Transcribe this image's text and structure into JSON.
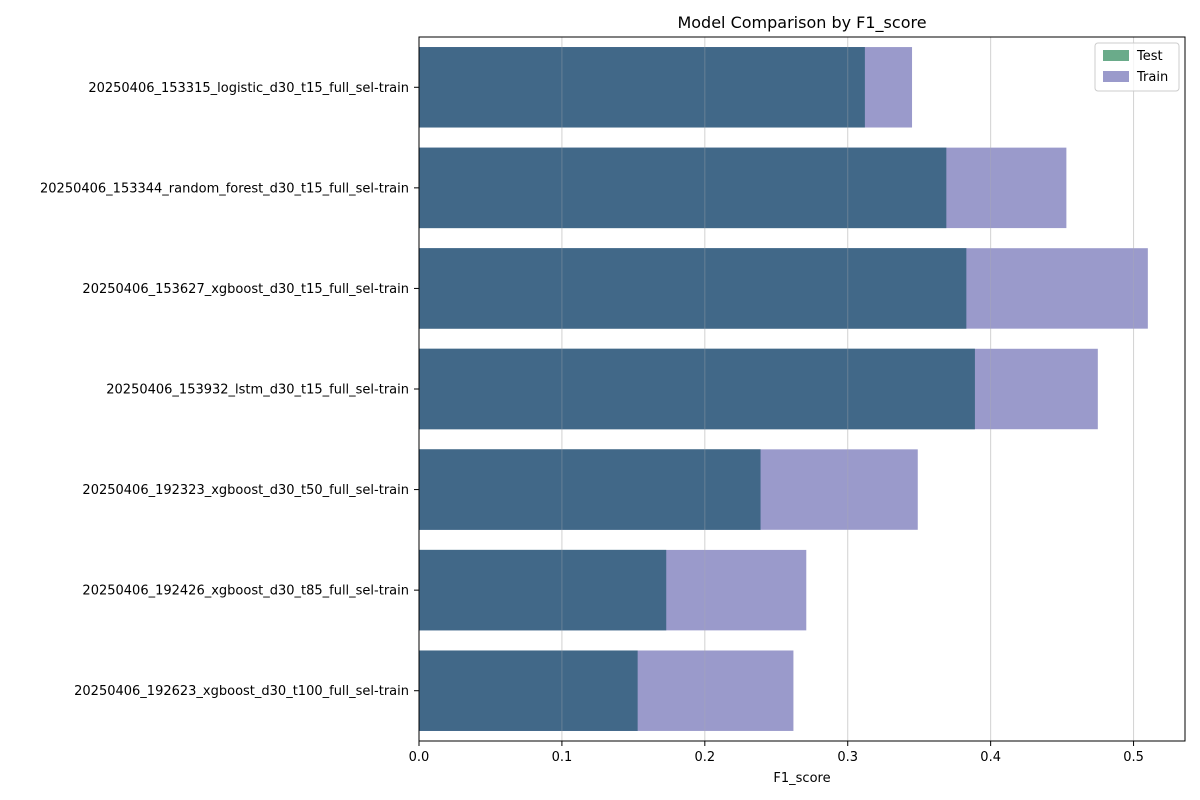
{
  "chart_data": {
    "type": "bar",
    "orientation": "horizontal",
    "title": "Model Comparison by F1_score",
    "xlabel": "F1_score",
    "ylabel": "",
    "xlim": [
      0,
      0.536
    ],
    "x_ticks": [
      0.0,
      0.1,
      0.2,
      0.3,
      0.4,
      0.5
    ],
    "x_tick_labels": [
      "0.0",
      "0.1",
      "0.2",
      "0.3",
      "0.4",
      "0.5"
    ],
    "grid": "vertical",
    "legend_position": "top-right",
    "categories": [
      "20250406_153315_logistic_d30_t15_full_sel-train",
      "20250406_153344_random_forest_d30_t15_full_sel-train",
      "20250406_153627_xgboost_d30_t15_full_sel-train",
      "20250406_153932_lstm_d30_t15_full_sel-train",
      "20250406_192323_xgboost_d30_t50_full_sel-train",
      "20250406_192426_xgboost_d30_t85_full_sel-train",
      "20250406_192623_xgboost_d30_t100_full_sel-train"
    ],
    "series": [
      {
        "name": "Test",
        "color": "#6aab8a",
        "values": [
          0.312,
          0.369,
          0.383,
          0.389,
          0.239,
          0.173,
          0.153
        ]
      },
      {
        "name": "Train",
        "color": "#9a9acb",
        "values": [
          0.345,
          0.453,
          0.51,
          0.475,
          0.349,
          0.271,
          0.262
        ]
      }
    ],
    "overlap_color": "#416888"
  }
}
